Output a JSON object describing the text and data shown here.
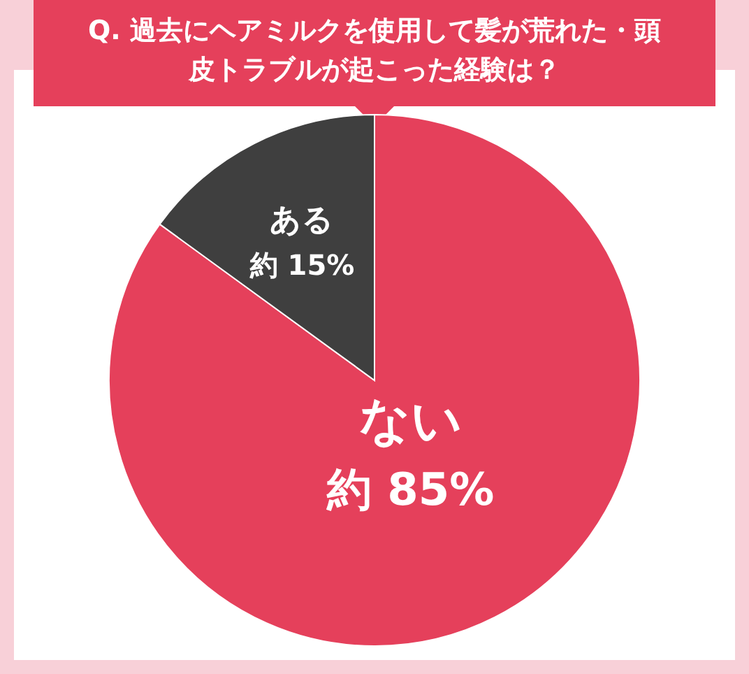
{
  "chart_data": {
    "type": "pie",
    "title": "Q. 過去にヘアミルクを使用して髪が荒れた・頭皮トラブルが起こった経験は？",
    "categories": [
      "ない",
      "ある"
    ],
    "values": [
      85,
      15
    ],
    "colors": [
      "#e5405b",
      "#3f3f3f"
    ],
    "value_labels": [
      "約 85%",
      "約 15%"
    ]
  }
}
